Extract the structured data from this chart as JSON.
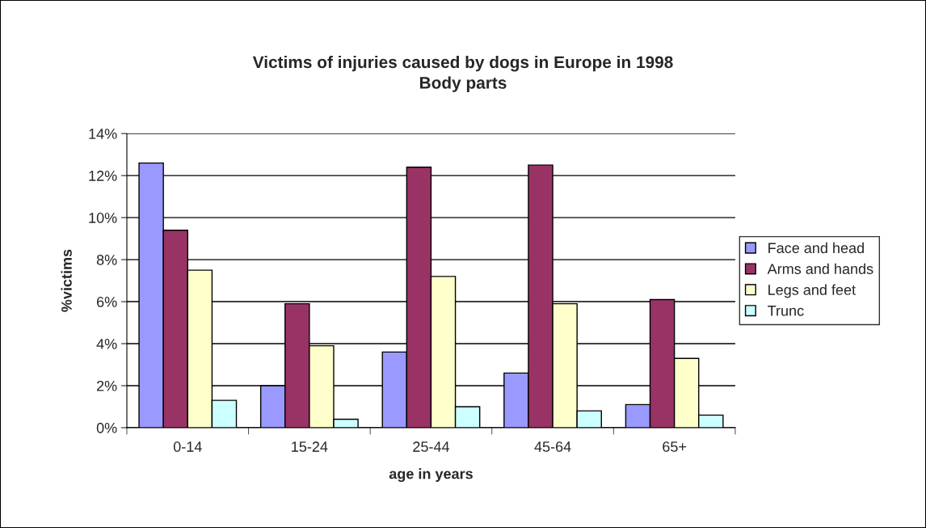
{
  "chart_data": {
    "type": "bar",
    "title": "Victims of injuries caused by dogs in Europe in 1998\nBody parts",
    "xlabel": "age in years",
    "ylabel": "%victims",
    "categories": [
      "0-14",
      "15-24",
      "25-44",
      "45-64",
      "65+"
    ],
    "series": [
      {
        "name": "Face and head",
        "color": "#9999ff",
        "values": [
          12.6,
          2.0,
          3.6,
          2.6,
          1.1
        ]
      },
      {
        "name": "Arms and hands",
        "color": "#993366",
        "values": [
          9.4,
          5.9,
          12.4,
          12.5,
          6.1
        ]
      },
      {
        "name": "Legs and feet",
        "color": "#ffffcc",
        "values": [
          7.5,
          3.9,
          7.2,
          5.9,
          3.3
        ]
      },
      {
        "name": "Trunc",
        "color": "#ccffff",
        "values": [
          1.3,
          0.4,
          1.0,
          0.8,
          0.6
        ]
      }
    ],
    "ylim": [
      0,
      14
    ],
    "yticks": [
      {
        "value": 0,
        "label": "0%"
      },
      {
        "value": 2,
        "label": "2%"
      },
      {
        "value": 4,
        "label": "4%"
      },
      {
        "value": 6,
        "label": "6%"
      },
      {
        "value": 8,
        "label": "8%"
      },
      {
        "value": 10,
        "label": "10%"
      },
      {
        "value": 12,
        "label": "12%"
      },
      {
        "value": 14,
        "label": "14%"
      }
    ],
    "grid": "y",
    "legend": "right"
  }
}
